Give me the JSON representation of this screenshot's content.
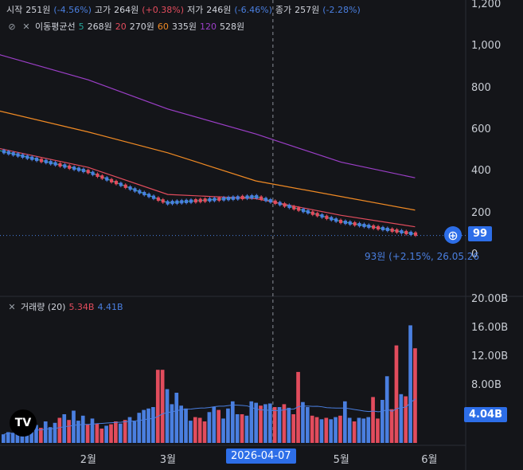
{
  "header": {
    "open_label": "시작",
    "open_value": "251원",
    "open_change": "(-4.56%)",
    "high_label": "고가",
    "high_value": "264원",
    "high_change": "(+0.38%)",
    "low_label": "저가",
    "low_value": "246원",
    "low_change": "(-6.46%)",
    "close_label": "종가",
    "close_value": "257원",
    "close_change": "(-2.28%)"
  },
  "ma_legend": {
    "label": "이동평균선",
    "items": [
      {
        "period": "5",
        "value": "268원",
        "color": "#26a69a"
      },
      {
        "period": "20",
        "value": "270원",
        "color": "#e24c5d"
      },
      {
        "period": "60",
        "value": "335원",
        "color": "#f08a24"
      },
      {
        "period": "120",
        "value": "528원",
        "color": "#9c3fc8"
      }
    ]
  },
  "volume_legend": {
    "label": "거래량 (20)",
    "value_red": "5.34B",
    "value_blue": "4.41B"
  },
  "price_axis": [
    "1,200",
    "1,000",
    "800",
    "600",
    "400",
    "200",
    "0"
  ],
  "volume_axis": [
    "20.00B",
    "16.00B",
    "12.00B",
    "8.00B"
  ],
  "time_axis": [
    "2월",
    "3월",
    "5월",
    "6월"
  ],
  "crosshair_date": "2026-04-07",
  "last_price_tag": "99",
  "last_volume_tag": "4.04B",
  "last_price_note": "93원 (+2.15%, 26.05.26",
  "icons": {
    "logo": "tradingview-logo",
    "add": "plus-circle-icon",
    "close": "close-icon",
    "eye": "eye-off-icon"
  },
  "colors": {
    "up": "#e24c5d",
    "down": "#4a7fe0",
    "accent": "#2d6ee8"
  },
  "chart_data": [
    {
      "type": "line",
      "title": "",
      "ylim": [
        0,
        1200
      ],
      "x_range": [
        "2026-01-01",
        "2026-05-28"
      ],
      "series": [
        {
          "name": "5",
          "x": [
            "2026-01-01",
            "2026-02-01",
            "2026-03-01",
            "2026-04-01",
            "2026-05-01",
            "2026-05-27"
          ],
          "values": [
            500,
            400,
            250,
            280,
            160,
            100
          ]
        },
        {
          "name": "20",
          "x": [
            "2026-01-01",
            "2026-02-01",
            "2026-03-01",
            "2026-04-01",
            "2026-05-01",
            "2026-05-27"
          ],
          "values": [
            510,
            420,
            290,
            270,
            190,
            135
          ]
        },
        {
          "name": "60",
          "x": [
            "2026-01-01",
            "2026-02-01",
            "2026-03-01",
            "2026-04-01",
            "2026-05-01",
            "2026-05-27"
          ],
          "values": [
            690,
            590,
            490,
            355,
            280,
            215
          ]
        },
        {
          "name": "120",
          "x": [
            "2026-01-01",
            "2026-02-01",
            "2026-03-01",
            "2026-04-01",
            "2026-05-01",
            "2026-05-27"
          ],
          "values": [
            960,
            840,
            700,
            580,
            445,
            370
          ]
        }
      ]
    },
    {
      "type": "bar",
      "title": "",
      "ylim": [
        0,
        22
      ],
      "categories": [
        "1",
        "2",
        "3",
        "4",
        "5",
        "6",
        "7",
        "8",
        "9",
        "10",
        "11",
        "12",
        "13",
        "14",
        "15",
        "16",
        "17",
        "18",
        "19",
        "20",
        "21",
        "22",
        "23",
        "24",
        "25",
        "26",
        "27",
        "28",
        "29",
        "30",
        "31",
        "32",
        "33",
        "34",
        "35",
        "36",
        "37",
        "38",
        "39",
        "40",
        "41",
        "42",
        "43",
        "44",
        "45",
        "46",
        "47",
        "48",
        "49",
        "50",
        "51",
        "52",
        "53",
        "54",
        "55",
        "56",
        "57",
        "58",
        "59",
        "60",
        "61",
        "62",
        "63",
        "64",
        "65",
        "66",
        "67",
        "68",
        "69",
        "70",
        "71",
        "72",
        "73",
        "74",
        "75",
        "76",
        "77",
        "78",
        "79",
        "80",
        "81",
        "82",
        "83",
        "84",
        "85",
        "86",
        "87",
        "88",
        "89"
      ],
      "values": [
        1.2,
        1.5,
        1.4,
        1.8,
        2.0,
        2.3,
        1.6,
        2.5,
        2.1,
        3.0,
        2.2,
        2.8,
        3.5,
        4.0,
        3.2,
        4.5,
        3.1,
        3.8,
        2.6,
        3.4,
        2.7,
        2.0,
        2.4,
        2.6,
        3.0,
        2.7,
        3.2,
        3.6,
        3.0,
        4.2,
        4.6,
        4.8,
        5.0,
        10.2,
        10.2,
        7.5,
        5.4,
        7.0,
        5.2,
        4.8,
        3.1,
        3.6,
        3.5,
        3.0,
        4.3,
        5.0,
        4.6,
        3.4,
        4.8,
        5.8,
        4.0,
        4.0,
        3.8,
        5.8,
        5.6,
        5.2,
        5.4,
        5.5,
        5.0,
        5.0,
        5.4,
        4.9,
        4.0,
        9.9,
        5.7,
        5.0,
        3.8,
        3.6,
        3.3,
        3.5,
        3.3,
        3.6,
        3.8,
        5.8,
        3.5,
        3.0,
        3.5,
        3.4,
        3.6,
        6.4,
        3.4,
        6.0,
        9.3,
        4.7,
        13.6,
        6.8,
        6.5,
        16.4,
        13.2
      ],
      "up": [
        false,
        false,
        false,
        false,
        false,
        false,
        false,
        false,
        true,
        false,
        false,
        false,
        true,
        false,
        true,
        false,
        false,
        false,
        true,
        false,
        true,
        true,
        false,
        true,
        true,
        false,
        true,
        false,
        false,
        false,
        false,
        false,
        false,
        true,
        true,
        false,
        false,
        false,
        false,
        false,
        false,
        true,
        true,
        true,
        false,
        false,
        true,
        false,
        false,
        false,
        false,
        true,
        false,
        false,
        false,
        true,
        false,
        false,
        true,
        false,
        true,
        false,
        true,
        true,
        false,
        false,
        true,
        true,
        false,
        true,
        false,
        false,
        true,
        false,
        false,
        true,
        false,
        false,
        false,
        true,
        true,
        false,
        false,
        true,
        true,
        false,
        true,
        false,
        true
      ]
    }
  ]
}
